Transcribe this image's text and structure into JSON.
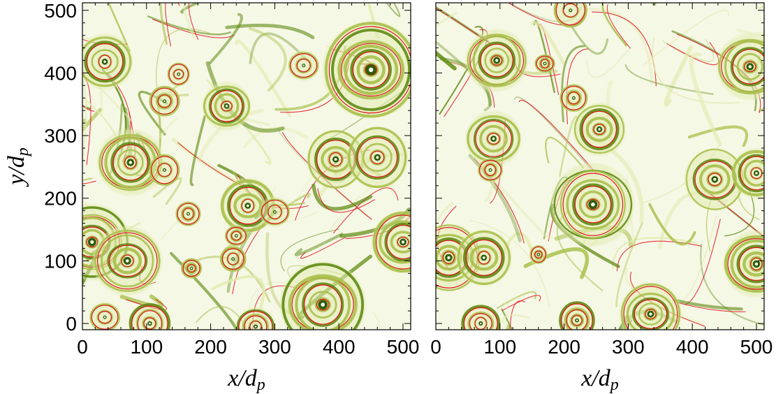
{
  "chart_data": [
    {
      "type": "heatmap",
      "panel": "left",
      "xlabel": "x/d",
      "xlabel_sub": "p",
      "ylabel": "y/d",
      "ylabel_sub": "p",
      "xlim": [
        0,
        512
      ],
      "ylim": [
        -10,
        512
      ],
      "xticks": [
        0,
        100,
        200,
        300,
        400,
        500
      ],
      "yticks": [
        0,
        100,
        200,
        300,
        400,
        500
      ],
      "colormap": [
        "#ffffff",
        "#e2ebb0",
        "#a8c04a",
        "#5e8a12",
        "#2f5e08"
      ],
      "contour_color": "#e0141e",
      "vortices": [
        {
          "x": 35,
          "y": 418,
          "r": 40
        },
        {
          "x": 150,
          "y": 398,
          "r": 16
        },
        {
          "x": 128,
          "y": 355,
          "r": 22
        },
        {
          "x": 345,
          "y": 412,
          "r": 22
        },
        {
          "x": 450,
          "y": 405,
          "r": 70
        },
        {
          "x": 225,
          "y": 347,
          "r": 35
        },
        {
          "x": 75,
          "y": 257,
          "r": 48
        },
        {
          "x": 128,
          "y": 245,
          "r": 22
        },
        {
          "x": 395,
          "y": 262,
          "r": 42
        },
        {
          "x": 460,
          "y": 265,
          "r": 44
        },
        {
          "x": 258,
          "y": 188,
          "r": 40
        },
        {
          "x": 300,
          "y": 178,
          "r": 22
        },
        {
          "x": 165,
          "y": 175,
          "r": 18
        },
        {
          "x": 240,
          "y": 140,
          "r": 16
        },
        {
          "x": 15,
          "y": 130,
          "r": 55
        },
        {
          "x": 70,
          "y": 100,
          "r": 50
        },
        {
          "x": 170,
          "y": 88,
          "r": 14
        },
        {
          "x": 235,
          "y": 103,
          "r": 18
        },
        {
          "x": 375,
          "y": 30,
          "r": 62
        },
        {
          "x": 35,
          "y": 10,
          "r": 22
        },
        {
          "x": 105,
          "y": 0,
          "r": 30
        },
        {
          "x": 270,
          "y": -5,
          "r": 28
        },
        {
          "x": 500,
          "y": 130,
          "r": 45
        }
      ]
    },
    {
      "type": "heatmap",
      "panel": "right",
      "xlabel": "x/d",
      "xlabel_sub": "p",
      "xlim": [
        0,
        512
      ],
      "ylim": [
        -10,
        512
      ],
      "xticks": [
        0,
        100,
        200,
        300,
        400,
        500
      ],
      "yticks": [
        0,
        100,
        200,
        300,
        400,
        500
      ],
      "colormap": [
        "#ffffff",
        "#e2ebb0",
        "#a8c04a",
        "#5e8a12",
        "#2f5e08"
      ],
      "contour_color": "#e0141e",
      "vortices": [
        {
          "x": 210,
          "y": 500,
          "r": 24
        },
        {
          "x": 95,
          "y": 420,
          "r": 45
        },
        {
          "x": 170,
          "y": 415,
          "r": 14
        },
        {
          "x": 490,
          "y": 410,
          "r": 48
        },
        {
          "x": 215,
          "y": 360,
          "r": 20
        },
        {
          "x": 255,
          "y": 310,
          "r": 38
        },
        {
          "x": 90,
          "y": 295,
          "r": 40
        },
        {
          "x": 85,
          "y": 245,
          "r": 18
        },
        {
          "x": 435,
          "y": 230,
          "r": 44
        },
        {
          "x": 500,
          "y": 240,
          "r": 36
        },
        {
          "x": 245,
          "y": 190,
          "r": 60
        },
        {
          "x": 160,
          "y": 110,
          "r": 12
        },
        {
          "x": 20,
          "y": 105,
          "r": 48
        },
        {
          "x": 75,
          "y": 105,
          "r": 40
        },
        {
          "x": 500,
          "y": 95,
          "r": 48
        },
        {
          "x": 335,
          "y": 15,
          "r": 45
        },
        {
          "x": 70,
          "y": 0,
          "r": 28
        },
        {
          "x": 220,
          "y": 5,
          "r": 26
        }
      ]
    }
  ]
}
